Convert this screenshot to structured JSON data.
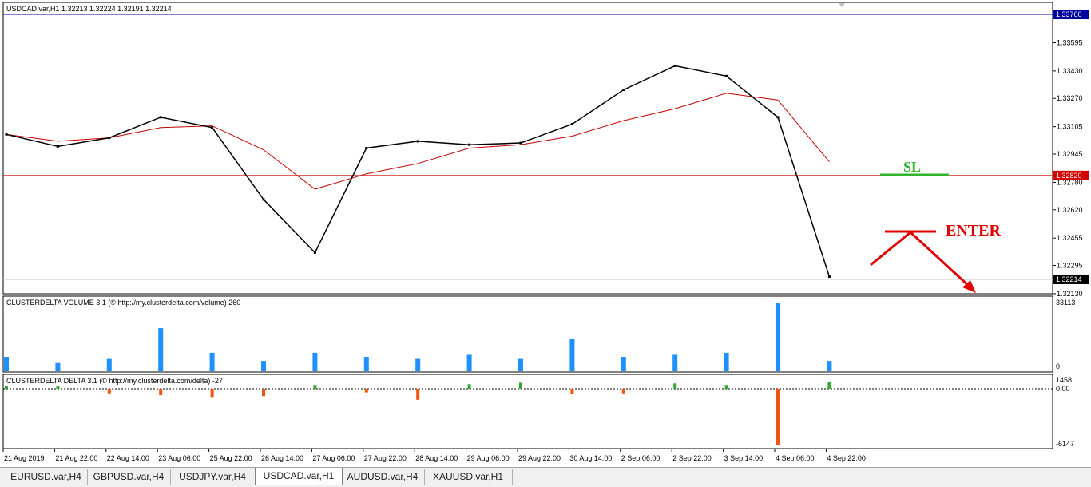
{
  "main_panel": {
    "header": "USDCAD.var,H1  1.32213 1.32224 1.32191 1.32214",
    "price_levels": [
      "1.33760",
      "1.33595",
      "1.33430",
      "1.33270",
      "1.33105",
      "1.32945",
      "1.32780",
      "1.32620",
      "1.32455",
      "1.32295",
      "1.32130"
    ],
    "badges": {
      "blue_line": "1.33760",
      "red_line": "1.32820",
      "current": "1.32214"
    },
    "annotations": {
      "sl": "SL",
      "enter": "ENTER"
    },
    "colors": {
      "blue_line": "#0000a0",
      "red_line": "#d40000",
      "ma": "#c80000",
      "sl_line": "#2db52d",
      "arrow": "#e00000",
      "enter_text": "#e00000"
    }
  },
  "volume_panel": {
    "header": "CLUSTERDELTA VOLUME 3.1 (© http://my.clusterdelta.com/volume) 260",
    "max_label": "33113",
    "zero_label": "0",
    "bar_color": "#1e90ff"
  },
  "delta_panel": {
    "header": "CLUSTERDELTA DELTA 3.1 (© http://my.clusterdelta.com/delta) -27",
    "top_label": "1458",
    "zero_label": "0.00",
    "bottom_label": "-6147",
    "pos_color": "#33aa33",
    "neg_color": "#ee5511"
  },
  "time_axis": [
    "21 Aug 2019",
    "21 Aug 22:00",
    "22 Aug 14:00",
    "23 Aug 06:00",
    "25 Aug 22:00",
    "26 Aug 14:00",
    "27 Aug 06:00",
    "27 Aug 22:00",
    "28 Aug 14:00",
    "29 Aug 06:00",
    "29 Aug 22:00",
    "30 Aug 14:00",
    "2 Sep 06:00",
    "2 Sep 22:00",
    "3 Sep 14:00",
    "4 Sep 06:00",
    "4 Sep 22:00"
  ],
  "tabs": [
    "EURUSD.var,H4",
    "GBPUSD.var,H4",
    "USDJPY.var,H4",
    "USDCAD.var,H1",
    "AUDUSD.var,H4",
    "XAUUSD.var,H1"
  ],
  "active_tab": "USDCAD.var,H1",
  "chart_data": {
    "type": "line",
    "xlabel": "",
    "ylabel": "",
    "ylim": [
      1.3213,
      1.3383
    ],
    "x": [
      "21 Aug 2019",
      "21 Aug 22:00",
      "22 Aug 14:00",
      "23 Aug 06:00",
      "25 Aug 22:00",
      "26 Aug 14:00",
      "27 Aug 06:00",
      "27 Aug 22:00",
      "28 Aug 14:00",
      "29 Aug 06:00",
      "29 Aug 22:00",
      "30 Aug 14:00",
      "2 Sep 06:00",
      "2 Sep 22:00",
      "3 Sep 14:00",
      "4 Sep 06:00",
      "4 Sep 22:00"
    ],
    "series": [
      {
        "values": [
          1.3306,
          1.3299,
          1.3304,
          1.3316,
          1.331,
          1.3268,
          1.3237,
          1.3298,
          1.3302,
          1.33,
          1.3301,
          1.3312,
          1.3332,
          1.3346,
          1.334,
          1.3316,
          1.3223
        ]
      },
      {
        "values": [
          1.3306,
          1.3302,
          1.3304,
          1.331,
          1.3311,
          1.3297,
          1.3274,
          1.3283,
          1.3289,
          1.3298,
          1.33,
          1.3305,
          1.3314,
          1.3321,
          1.333,
          1.3326,
          1.329
        ]
      }
    ],
    "volume": [
      7000,
      4000,
      6000,
      21000,
      9000,
      5000,
      9000,
      7000,
      6000,
      8000,
      6000,
      16000,
      7000,
      8000,
      9000,
      33113,
      5000
    ],
    "delta": [
      400,
      300,
      -500,
      -700,
      -900,
      -800,
      500,
      -400,
      -1200,
      600,
      800,
      -600,
      -500,
      700,
      500,
      -6147,
      900
    ],
    "levels": [
      1.3376,
      1.3282
    ]
  }
}
